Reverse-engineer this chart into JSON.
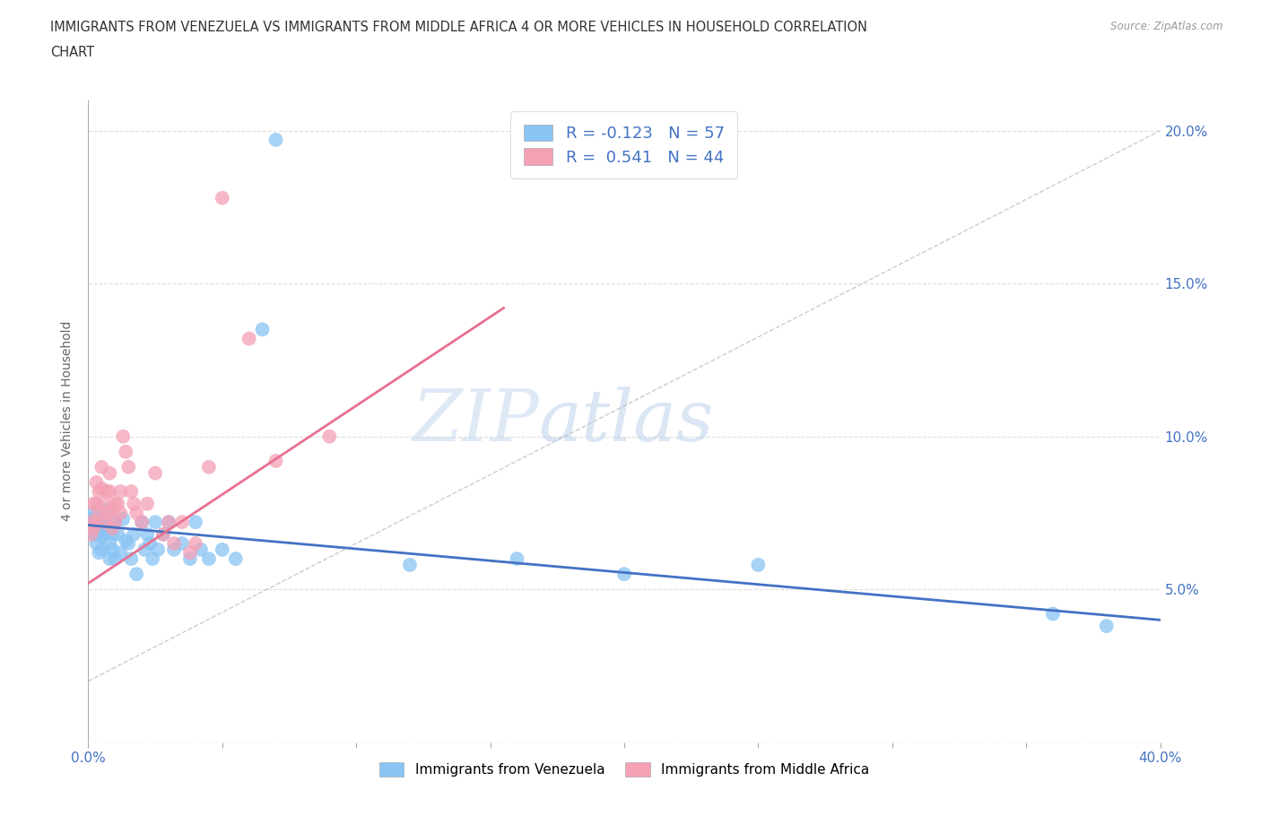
{
  "title": "IMMIGRANTS FROM VENEZUELA VS IMMIGRANTS FROM MIDDLE AFRICA 4 OR MORE VEHICLES IN HOUSEHOLD CORRELATION\nCHART",
  "source": "Source: ZipAtlas.com",
  "ylabel": "4 or more Vehicles in Household",
  "x_min": 0.0,
  "x_max": 0.4,
  "y_min": 0.0,
  "y_max": 0.21,
  "y_ticks": [
    0.0,
    0.05,
    0.1,
    0.15,
    0.2
  ],
  "color_venezuela": "#89C4F4",
  "color_middle_africa": "#F4A0B5",
  "R_venezuela": -0.123,
  "N_venezuela": 57,
  "R_middle_africa": 0.541,
  "N_middle_africa": 44,
  "legend_label_venezuela": "Immigrants from Venezuela",
  "legend_label_middle_africa": "Immigrants from Middle Africa",
  "watermark_zip": "ZIP",
  "watermark_atlas": "atlas",
  "background_color": "#FFFFFF",
  "grid_color": "#DDDDDD",
  "diag_line_color": "#CCCCCC",
  "trend_ven_color": "#4472C4",
  "trend_mid_color": "#E87090",
  "ven_line_y0": 0.071,
  "ven_line_y1": 0.04,
  "ven_line_x0": 0.0,
  "ven_line_x1": 0.4,
  "mid_line_y0": 0.052,
  "mid_line_y1": 0.142,
  "mid_line_x0": 0.0,
  "mid_line_x1": 0.155,
  "venezuela_x": [
    0.001,
    0.001,
    0.002,
    0.002,
    0.002,
    0.003,
    0.003,
    0.003,
    0.004,
    0.004,
    0.004,
    0.005,
    0.005,
    0.005,
    0.006,
    0.006,
    0.007,
    0.007,
    0.008,
    0.008,
    0.009,
    0.009,
    0.01,
    0.01,
    0.011,
    0.012,
    0.013,
    0.014,
    0.015,
    0.016,
    0.017,
    0.018,
    0.02,
    0.021,
    0.022,
    0.023,
    0.024,
    0.025,
    0.026,
    0.028,
    0.03,
    0.032,
    0.035,
    0.038,
    0.04,
    0.042,
    0.045,
    0.05,
    0.055,
    0.065,
    0.07,
    0.12,
    0.16,
    0.2,
    0.25,
    0.36,
    0.38
  ],
  "venezuela_y": [
    0.073,
    0.069,
    0.075,
    0.068,
    0.072,
    0.074,
    0.07,
    0.065,
    0.073,
    0.068,
    0.062,
    0.071,
    0.067,
    0.063,
    0.072,
    0.068,
    0.076,
    0.07,
    0.065,
    0.06,
    0.068,
    0.063,
    0.072,
    0.06,
    0.068,
    0.062,
    0.073,
    0.066,
    0.065,
    0.06,
    0.068,
    0.055,
    0.072,
    0.063,
    0.068,
    0.065,
    0.06,
    0.072,
    0.063,
    0.068,
    0.072,
    0.063,
    0.065,
    0.06,
    0.072,
    0.063,
    0.06,
    0.063,
    0.06,
    0.135,
    0.197,
    0.058,
    0.06,
    0.055,
    0.058,
    0.042,
    0.038
  ],
  "middle_africa_x": [
    0.001,
    0.001,
    0.002,
    0.002,
    0.003,
    0.003,
    0.003,
    0.004,
    0.004,
    0.005,
    0.005,
    0.006,
    0.006,
    0.007,
    0.007,
    0.008,
    0.008,
    0.009,
    0.009,
    0.01,
    0.01,
    0.011,
    0.012,
    0.012,
    0.013,
    0.014,
    0.015,
    0.016,
    0.017,
    0.018,
    0.02,
    0.022,
    0.025,
    0.028,
    0.03,
    0.032,
    0.035,
    0.038,
    0.04,
    0.045,
    0.05,
    0.06,
    0.07,
    0.09
  ],
  "middle_africa_y": [
    0.072,
    0.068,
    0.078,
    0.07,
    0.085,
    0.078,
    0.072,
    0.082,
    0.075,
    0.09,
    0.083,
    0.078,
    0.072,
    0.082,
    0.075,
    0.088,
    0.082,
    0.076,
    0.07,
    0.078,
    0.072,
    0.078,
    0.082,
    0.075,
    0.1,
    0.095,
    0.09,
    0.082,
    0.078,
    0.075,
    0.072,
    0.078,
    0.088,
    0.068,
    0.072,
    0.065,
    0.072,
    0.062,
    0.065,
    0.09,
    0.178,
    0.132,
    0.092,
    0.1
  ]
}
